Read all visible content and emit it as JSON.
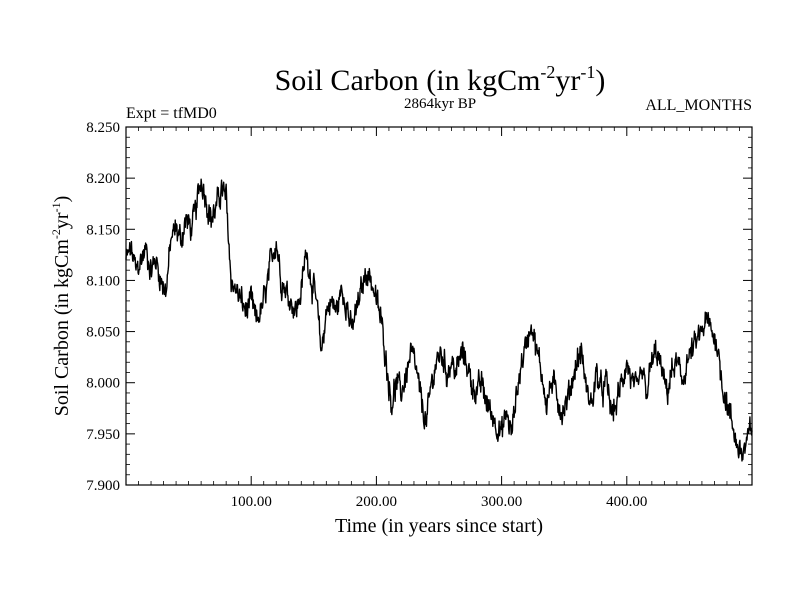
{
  "chart_data": {
    "type": "line",
    "title": {
      "main": "Soil Carbon (in kgCm",
      "sup1": "-2",
      "mid": "yr",
      "sup2": "-1",
      "end": ")"
    },
    "subtitle": "2864kyr BP",
    "left_label": "Expt = tfMD0",
    "right_label": "ALL_MONTHS",
    "xlabel": "Time (in years since start)",
    "ylabel": {
      "main": "Soil Carbon (in kgCm",
      "sup1": "-2",
      "mid": "yr",
      "sup2": "-1",
      "end": ")"
    },
    "xlim": [
      0,
      500
    ],
    "ylim": [
      7.9,
      8.25
    ],
    "x_ticks": [
      100,
      200,
      300,
      400
    ],
    "x_tick_labels": [
      "100.00",
      "200.00",
      "300.00",
      "400.00"
    ],
    "y_ticks": [
      7.9,
      7.95,
      8.0,
      8.05,
      8.1,
      8.15,
      8.2,
      8.25
    ],
    "y_tick_labels": [
      "7.900",
      "7.950",
      "8.000",
      "8.050",
      "8.100",
      "8.150",
      "8.200",
      "8.250"
    ],
    "grid": false,
    "series": [
      {
        "name": "Soil Carbon",
        "color": "#000000",
        "x": [
          0,
          4,
          8,
          12,
          16,
          20,
          24,
          28,
          32,
          36,
          40,
          44,
          48,
          52,
          56,
          60,
          64,
          68,
          72,
          76,
          80,
          84,
          88,
          92,
          96,
          100,
          104,
          108,
          112,
          116,
          120,
          124,
          128,
          132,
          136,
          140,
          144,
          148,
          152,
          156,
          160,
          164,
          168,
          172,
          176,
          180,
          184,
          188,
          192,
          196,
          200,
          204,
          208,
          212,
          216,
          220,
          224,
          228,
          232,
          236,
          240,
          244,
          248,
          252,
          256,
          260,
          264,
          268,
          272,
          276,
          280,
          284,
          288,
          292,
          296,
          300,
          304,
          308,
          312,
          316,
          320,
          324,
          328,
          332,
          336,
          340,
          344,
          348,
          352,
          356,
          360,
          364,
          368,
          372,
          376,
          380,
          384,
          388,
          392,
          396,
          400,
          404,
          408,
          412,
          416,
          420,
          424,
          428,
          432,
          436,
          440,
          444,
          448,
          452,
          456,
          460,
          464,
          468,
          472,
          476,
          480,
          484,
          488,
          492,
          496,
          500
        ],
        "values": [
          8.12,
          8.13,
          8.11,
          8.12,
          8.13,
          8.11,
          8.12,
          8.1,
          8.09,
          8.14,
          8.15,
          8.14,
          8.16,
          8.15,
          8.17,
          8.2,
          8.18,
          8.16,
          8.17,
          8.19,
          8.18,
          8.1,
          8.09,
          8.08,
          8.07,
          8.08,
          8.06,
          8.07,
          8.09,
          8.12,
          8.14,
          8.1,
          8.09,
          8.08,
          8.07,
          8.09,
          8.13,
          8.1,
          8.08,
          8.03,
          8.07,
          8.08,
          8.07,
          8.09,
          8.08,
          8.05,
          8.07,
          8.09,
          8.11,
          8.1,
          8.08,
          8.06,
          8.02,
          7.98,
          8.0,
          7.99,
          8.01,
          8.03,
          8.01,
          7.98,
          7.96,
          8.0,
          8.02,
          8.03,
          8.01,
          8.02,
          8.01,
          8.03,
          8.02,
          8.0,
          7.99,
          8.0,
          7.98,
          7.97,
          7.96,
          7.95,
          7.97,
          7.95,
          7.99,
          8.02,
          8.04,
          8.06,
          8.03,
          8.01,
          7.98,
          8.0,
          7.99,
          7.97,
          7.98,
          8.0,
          8.02,
          8.03,
          7.99,
          7.98,
          8.01,
          7.99,
          8.0,
          7.97,
          7.98,
          8.0,
          8.02,
          8.0,
          7.99,
          8.01,
          7.99,
          8.02,
          8.03,
          8.01,
          7.99,
          8.01,
          8.02,
          8.0,
          8.02,
          8.03,
          8.04,
          8.05,
          8.06,
          8.05,
          8.04,
          8.0,
          7.98,
          7.96,
          7.94,
          7.93,
          7.94,
          7.96
        ]
      }
    ]
  }
}
